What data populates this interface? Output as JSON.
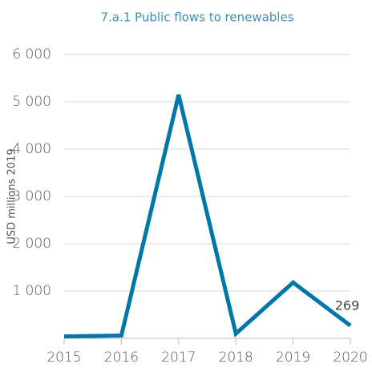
{
  "chart_data": {
    "type": "line",
    "title": "7.a.1 Public flows to renewables",
    "y_label": "USD millions 2019",
    "x": [
      2015,
      2016,
      2017,
      2018,
      2019,
      2020
    ],
    "values": [
      40,
      60,
      5150,
      100,
      1180,
      269
    ],
    "color": "#0077a8",
    "xlim": [
      2015,
      2020
    ],
    "xticks": [
      2015,
      2016,
      2017,
      2018,
      2019,
      2020
    ],
    "ylim": [
      0,
      6000
    ],
    "yticks": [
      {
        "value": 1000,
        "label": "1 000"
      },
      {
        "value": 2000,
        "label": "2 000"
      },
      {
        "value": 3000,
        "label": "3 000"
      },
      {
        "value": 4000,
        "label": "4 000"
      },
      {
        "value": 5000,
        "label": "5 000"
      },
      {
        "value": 6000,
        "label": "6 000"
      }
    ],
    "grid": true
  }
}
